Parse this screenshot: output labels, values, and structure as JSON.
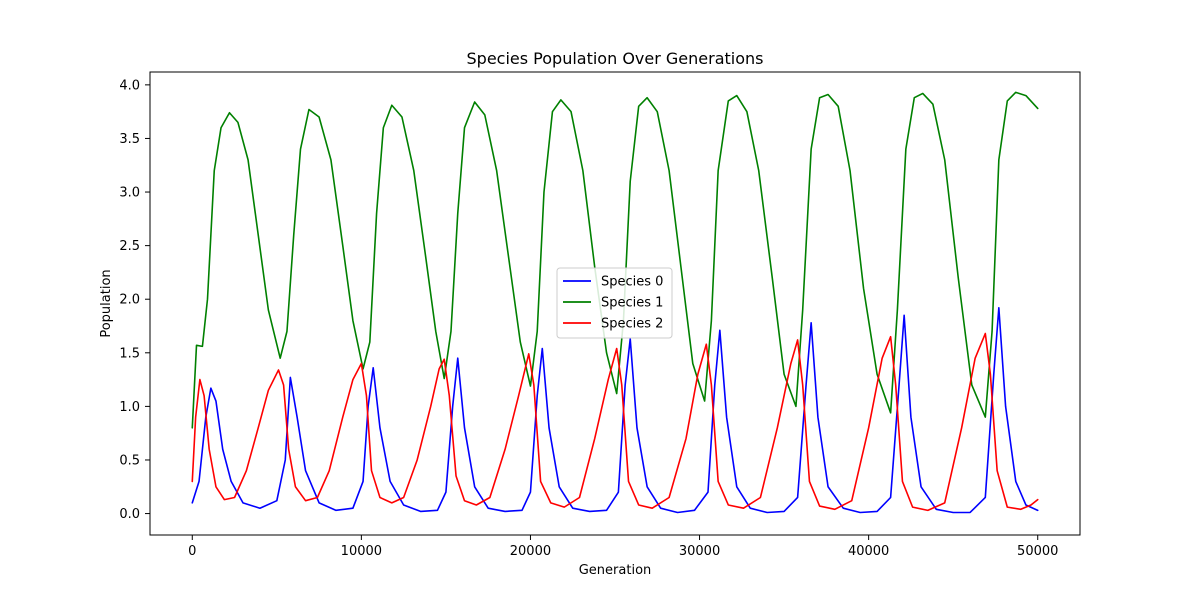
{
  "chart_data": {
    "type": "line",
    "title": "Species Population Over Generations",
    "xlabel": "Generation",
    "ylabel": "Population",
    "xlim": [
      -2500,
      52500
    ],
    "ylim": [
      -0.2,
      4.12
    ],
    "xticks": [
      0,
      10000,
      20000,
      30000,
      40000,
      50000
    ],
    "xtick_labels": [
      "0",
      "10000",
      "20000",
      "30000",
      "40000",
      "50000"
    ],
    "yticks": [
      0.0,
      0.5,
      1.0,
      1.5,
      2.0,
      2.5,
      3.0,
      3.5,
      4.0
    ],
    "ytick_labels": [
      "0.0",
      "0.5",
      "1.0",
      "1.5",
      "2.0",
      "2.5",
      "3.0",
      "3.5",
      "4.0"
    ],
    "grid": false,
    "legend_position": "center",
    "series": [
      {
        "name": "Species 0",
        "color": "#0000ff",
        "points": [
          [
            0,
            0.1
          ],
          [
            400,
            0.3
          ],
          [
            800,
            0.9
          ],
          [
            1100,
            1.17
          ],
          [
            1400,
            1.05
          ],
          [
            1800,
            0.6
          ],
          [
            2300,
            0.3
          ],
          [
            3000,
            0.1
          ],
          [
            4000,
            0.05
          ],
          [
            5000,
            0.12
          ],
          [
            5500,
            0.5
          ],
          [
            5800,
            1.27
          ],
          [
            6200,
            0.9
          ],
          [
            6700,
            0.4
          ],
          [
            7500,
            0.1
          ],
          [
            8500,
            0.03
          ],
          [
            9500,
            0.05
          ],
          [
            10100,
            0.3
          ],
          [
            10400,
            1.0
          ],
          [
            10700,
            1.36
          ],
          [
            11100,
            0.8
          ],
          [
            11700,
            0.3
          ],
          [
            12500,
            0.08
          ],
          [
            13500,
            0.02
          ],
          [
            14500,
            0.03
          ],
          [
            15000,
            0.2
          ],
          [
            15400,
            1.0
          ],
          [
            15700,
            1.45
          ],
          [
            16100,
            0.8
          ],
          [
            16700,
            0.25
          ],
          [
            17500,
            0.05
          ],
          [
            18500,
            0.02
          ],
          [
            19500,
            0.03
          ],
          [
            20000,
            0.2
          ],
          [
            20400,
            1.1
          ],
          [
            20700,
            1.54
          ],
          [
            21100,
            0.8
          ],
          [
            21700,
            0.25
          ],
          [
            22500,
            0.05
          ],
          [
            23500,
            0.02
          ],
          [
            24500,
            0.03
          ],
          [
            25200,
            0.2
          ],
          [
            25600,
            1.2
          ],
          [
            25900,
            1.63
          ],
          [
            26300,
            0.8
          ],
          [
            26900,
            0.25
          ],
          [
            27700,
            0.05
          ],
          [
            28700,
            0.01
          ],
          [
            29700,
            0.03
          ],
          [
            30500,
            0.2
          ],
          [
            30900,
            1.2
          ],
          [
            31200,
            1.71
          ],
          [
            31600,
            0.9
          ],
          [
            32200,
            0.25
          ],
          [
            33000,
            0.05
          ],
          [
            34000,
            0.01
          ],
          [
            35000,
            0.02
          ],
          [
            35800,
            0.15
          ],
          [
            36300,
            1.2
          ],
          [
            36600,
            1.78
          ],
          [
            37000,
            0.9
          ],
          [
            37600,
            0.25
          ],
          [
            38500,
            0.05
          ],
          [
            39500,
            0.01
          ],
          [
            40500,
            0.02
          ],
          [
            41300,
            0.15
          ],
          [
            41800,
            1.2
          ],
          [
            42100,
            1.85
          ],
          [
            42500,
            0.9
          ],
          [
            43100,
            0.25
          ],
          [
            44000,
            0.04
          ],
          [
            45000,
            0.01
          ],
          [
            46000,
            0.01
          ],
          [
            46900,
            0.15
          ],
          [
            47400,
            1.3
          ],
          [
            47700,
            1.92
          ],
          [
            48100,
            1.0
          ],
          [
            48700,
            0.3
          ],
          [
            49300,
            0.08
          ],
          [
            50000,
            0.03
          ]
        ]
      },
      {
        "name": "Species 1",
        "color": "#008000",
        "points": [
          [
            0,
            0.8
          ],
          [
            250,
            1.57
          ],
          [
            600,
            1.56
          ],
          [
            900,
            2.0
          ],
          [
            1300,
            3.2
          ],
          [
            1700,
            3.6
          ],
          [
            2200,
            3.74
          ],
          [
            2700,
            3.65
          ],
          [
            3300,
            3.3
          ],
          [
            3900,
            2.6
          ],
          [
            4500,
            1.9
          ],
          [
            5200,
            1.45
          ],
          [
            5600,
            1.7
          ],
          [
            6000,
            2.6
          ],
          [
            6400,
            3.4
          ],
          [
            6900,
            3.77
          ],
          [
            7500,
            3.7
          ],
          [
            8200,
            3.3
          ],
          [
            8900,
            2.5
          ],
          [
            9500,
            1.8
          ],
          [
            10100,
            1.35
          ],
          [
            10500,
            1.6
          ],
          [
            10900,
            2.8
          ],
          [
            11300,
            3.6
          ],
          [
            11800,
            3.81
          ],
          [
            12400,
            3.7
          ],
          [
            13100,
            3.2
          ],
          [
            13800,
            2.4
          ],
          [
            14400,
            1.7
          ],
          [
            14900,
            1.26
          ],
          [
            15300,
            1.7
          ],
          [
            15700,
            2.8
          ],
          [
            16100,
            3.6
          ],
          [
            16700,
            3.84
          ],
          [
            17300,
            3.72
          ],
          [
            18000,
            3.2
          ],
          [
            18700,
            2.4
          ],
          [
            19400,
            1.6
          ],
          [
            20000,
            1.19
          ],
          [
            20400,
            1.7
          ],
          [
            20800,
            3.0
          ],
          [
            21300,
            3.75
          ],
          [
            21800,
            3.86
          ],
          [
            22400,
            3.75
          ],
          [
            23100,
            3.2
          ],
          [
            23800,
            2.3
          ],
          [
            24500,
            1.5
          ],
          [
            25100,
            1.12
          ],
          [
            25500,
            1.8
          ],
          [
            25900,
            3.1
          ],
          [
            26400,
            3.8
          ],
          [
            26900,
            3.88
          ],
          [
            27500,
            3.75
          ],
          [
            28200,
            3.2
          ],
          [
            28900,
            2.3
          ],
          [
            29600,
            1.4
          ],
          [
            30300,
            1.05
          ],
          [
            30700,
            1.8
          ],
          [
            31100,
            3.2
          ],
          [
            31700,
            3.85
          ],
          [
            32200,
            3.9
          ],
          [
            32800,
            3.75
          ],
          [
            33500,
            3.2
          ],
          [
            34300,
            2.2
          ],
          [
            35000,
            1.3
          ],
          [
            35700,
            1.0
          ],
          [
            36100,
            1.9
          ],
          [
            36600,
            3.4
          ],
          [
            37100,
            3.88
          ],
          [
            37600,
            3.91
          ],
          [
            38200,
            3.8
          ],
          [
            38900,
            3.2
          ],
          [
            39700,
            2.1
          ],
          [
            40500,
            1.3
          ],
          [
            41300,
            0.94
          ],
          [
            41700,
            1.9
          ],
          [
            42200,
            3.4
          ],
          [
            42700,
            3.88
          ],
          [
            43200,
            3.92
          ],
          [
            43800,
            3.82
          ],
          [
            44500,
            3.3
          ],
          [
            45300,
            2.2
          ],
          [
            46100,
            1.2
          ],
          [
            46900,
            0.9
          ],
          [
            47300,
            1.7
          ],
          [
            47700,
            3.3
          ],
          [
            48200,
            3.85
          ],
          [
            48700,
            3.93
          ],
          [
            49300,
            3.9
          ],
          [
            50000,
            3.78
          ]
        ]
      },
      {
        "name": "Species 2",
        "color": "#ff0000",
        "points": [
          [
            0,
            0.3
          ],
          [
            200,
            0.9
          ],
          [
            450,
            1.25
          ],
          [
            700,
            1.1
          ],
          [
            1000,
            0.6
          ],
          [
            1400,
            0.25
          ],
          [
            1900,
            0.13
          ],
          [
            2500,
            0.15
          ],
          [
            3200,
            0.4
          ],
          [
            3900,
            0.8
          ],
          [
            4500,
            1.15
          ],
          [
            5100,
            1.34
          ],
          [
            5400,
            1.2
          ],
          [
            5700,
            0.6
          ],
          [
            6100,
            0.25
          ],
          [
            6700,
            0.12
          ],
          [
            7400,
            0.15
          ],
          [
            8100,
            0.4
          ],
          [
            8900,
            0.9
          ],
          [
            9500,
            1.25
          ],
          [
            10000,
            1.4
          ],
          [
            10300,
            1.1
          ],
          [
            10600,
            0.4
          ],
          [
            11100,
            0.15
          ],
          [
            11800,
            0.1
          ],
          [
            12500,
            0.15
          ],
          [
            13300,
            0.5
          ],
          [
            14100,
            1.0
          ],
          [
            14600,
            1.35
          ],
          [
            14900,
            1.44
          ],
          [
            15200,
            1.1
          ],
          [
            15600,
            0.35
          ],
          [
            16100,
            0.12
          ],
          [
            16800,
            0.08
          ],
          [
            17600,
            0.15
          ],
          [
            18500,
            0.6
          ],
          [
            19300,
            1.1
          ],
          [
            19900,
            1.49
          ],
          [
            20200,
            1.2
          ],
          [
            20600,
            0.3
          ],
          [
            21200,
            0.1
          ],
          [
            22000,
            0.06
          ],
          [
            22900,
            0.15
          ],
          [
            23800,
            0.7
          ],
          [
            24600,
            1.25
          ],
          [
            25100,
            1.54
          ],
          [
            25400,
            1.2
          ],
          [
            25800,
            0.3
          ],
          [
            26400,
            0.08
          ],
          [
            27200,
            0.05
          ],
          [
            28200,
            0.15
          ],
          [
            29200,
            0.7
          ],
          [
            29900,
            1.3
          ],
          [
            30400,
            1.58
          ],
          [
            30700,
            1.2
          ],
          [
            31100,
            0.3
          ],
          [
            31700,
            0.08
          ],
          [
            32600,
            0.05
          ],
          [
            33600,
            0.15
          ],
          [
            34600,
            0.8
          ],
          [
            35400,
            1.4
          ],
          [
            35800,
            1.62
          ],
          [
            36100,
            1.2
          ],
          [
            36500,
            0.3
          ],
          [
            37100,
            0.07
          ],
          [
            38000,
            0.04
          ],
          [
            39000,
            0.12
          ],
          [
            40000,
            0.8
          ],
          [
            40800,
            1.45
          ],
          [
            41300,
            1.65
          ],
          [
            41600,
            1.2
          ],
          [
            42000,
            0.3
          ],
          [
            42600,
            0.06
          ],
          [
            43500,
            0.03
          ],
          [
            44500,
            0.1
          ],
          [
            45500,
            0.8
          ],
          [
            46300,
            1.45
          ],
          [
            46900,
            1.68
          ],
          [
            47200,
            1.3
          ],
          [
            47600,
            0.4
          ],
          [
            48200,
            0.06
          ],
          [
            49000,
            0.04
          ],
          [
            49600,
            0.08
          ],
          [
            50000,
            0.13
          ]
        ]
      }
    ]
  }
}
